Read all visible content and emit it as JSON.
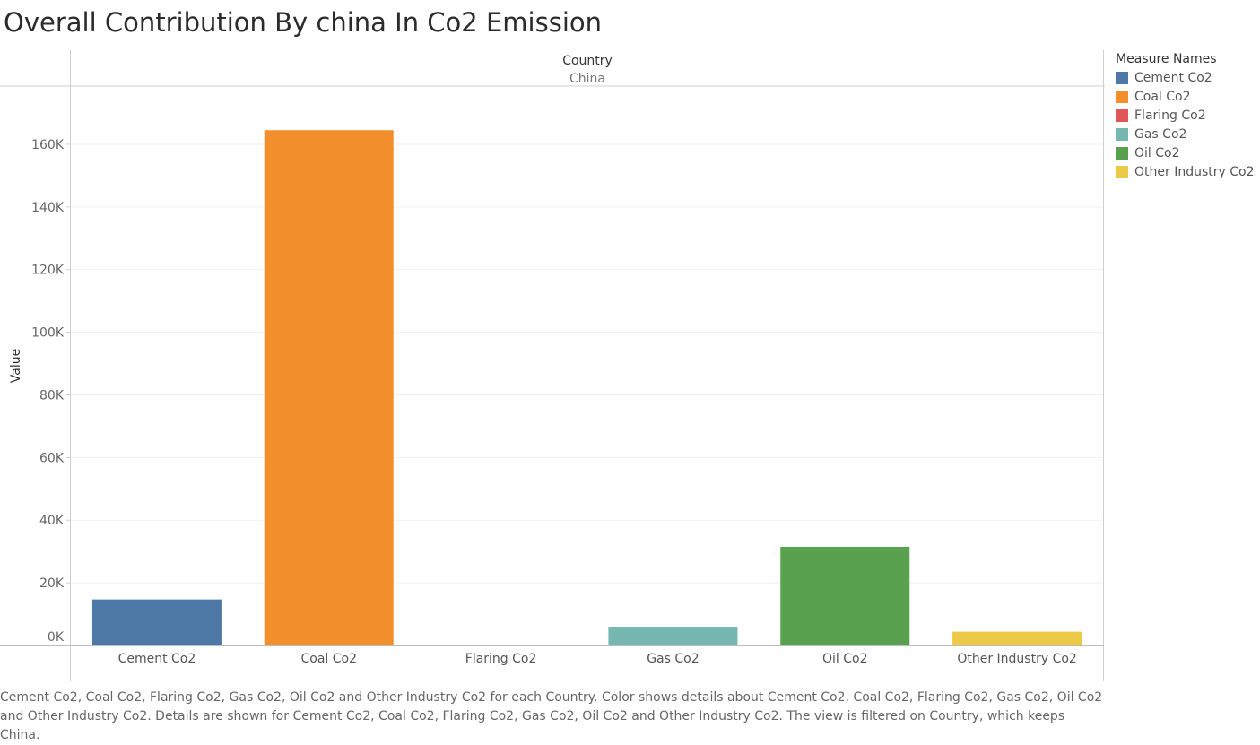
{
  "title": "Overall Contribution By china In Co2 Emission",
  "header": {
    "field": "Country",
    "value": "China"
  },
  "legend": {
    "title": "Measure Names",
    "items": [
      {
        "label": "Cement Co2",
        "color": "#4e79a7"
      },
      {
        "label": "Coal Co2",
        "color": "#f28e2b"
      },
      {
        "label": "Flaring Co2",
        "color": "#e15759"
      },
      {
        "label": "Gas Co2",
        "color": "#76b7b2"
      },
      {
        "label": "Oil Co2",
        "color": "#59a14f"
      },
      {
        "label": "Other Industry Co2",
        "color": "#edc948"
      }
    ]
  },
  "caption": "Cement Co2, Coal Co2, Flaring Co2, Gas Co2, Oil Co2 and Other Industry Co2 for each Country.  Color shows details about Cement Co2, Coal Co2, Flaring Co2, Gas Co2, Oil Co2 and Other Industry Co2.  Details are shown for Cement Co2, Coal Co2, Flaring Co2, Gas Co2, Oil Co2 and Other Industry Co2. The view is filtered on Country, which keeps China.",
  "chart_data": {
    "type": "bar",
    "title": "Overall Contribution By china In Co2 Emission",
    "xlabel": "",
    "ylabel": "Value",
    "categories": [
      "Cement Co2",
      "Coal Co2",
      "Flaring Co2",
      "Gas Co2",
      "Oil Co2",
      "Other Industry Co2"
    ],
    "values": [
      14700,
      164500,
      0,
      6000,
      31500,
      4400
    ],
    "colors": [
      "#4e79a7",
      "#f28e2b",
      "#e15759",
      "#76b7b2",
      "#59a14f",
      "#edc948"
    ],
    "ylim": [
      0,
      170000
    ],
    "yticks": [
      0,
      20000,
      40000,
      60000,
      80000,
      100000,
      120000,
      140000,
      160000
    ],
    "ytick_labels": [
      "0K",
      "20K",
      "40K",
      "60K",
      "80K",
      "100K",
      "120K",
      "140K",
      "160K"
    ],
    "grid": true,
    "legend": "right"
  }
}
